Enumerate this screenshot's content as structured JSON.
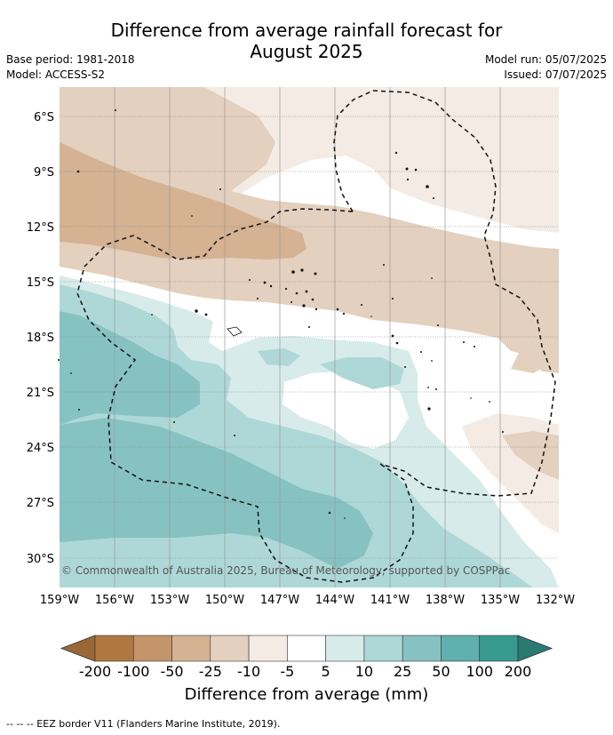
{
  "title_line1": "Difference from average rainfall forecast for",
  "title_line2": "August 2025",
  "meta_left": [
    "Base period: 1981-2018",
    "Model: ACCESS-S2"
  ],
  "meta_right": [
    "Model run: 05/07/2025",
    "Issued: 07/07/2025"
  ],
  "lat_labels": [
    "6°S",
    "9°S",
    "12°S",
    "15°S",
    "18°S",
    "21°S",
    "24°S",
    "27°S",
    "30°S"
  ],
  "lon_labels": [
    "159°W",
    "156°W",
    "153°W",
    "150°W",
    "147°W",
    "144°W",
    "141°W",
    "138°W",
    "135°W",
    "132°W"
  ],
  "copyright": "© Commonwealth of Australia 2025, Bureau of Meteorology, supported by COSPPac",
  "colorbar": {
    "ticks": [
      "-200",
      "-100",
      "-50",
      "-25",
      "-10",
      "-5",
      "5",
      "10",
      "25",
      "50",
      "100",
      "200"
    ],
    "colors": [
      "#b07840",
      "#c4956a",
      "#d4b292",
      "#e4d0bf",
      "#f4ebe4",
      "#ffffff",
      "#d6ebea",
      "#aed8d7",
      "#86c2c1",
      "#5fb0ae",
      "#37998f"
    ],
    "extend_low_color": "#9a6836",
    "extend_high_color": "#2a7a74",
    "label": "Difference from average (mm)"
  },
  "legend_footnote": "--  --  -- EEZ border V11 (Flanders Marine Institute, 2019)."
}
